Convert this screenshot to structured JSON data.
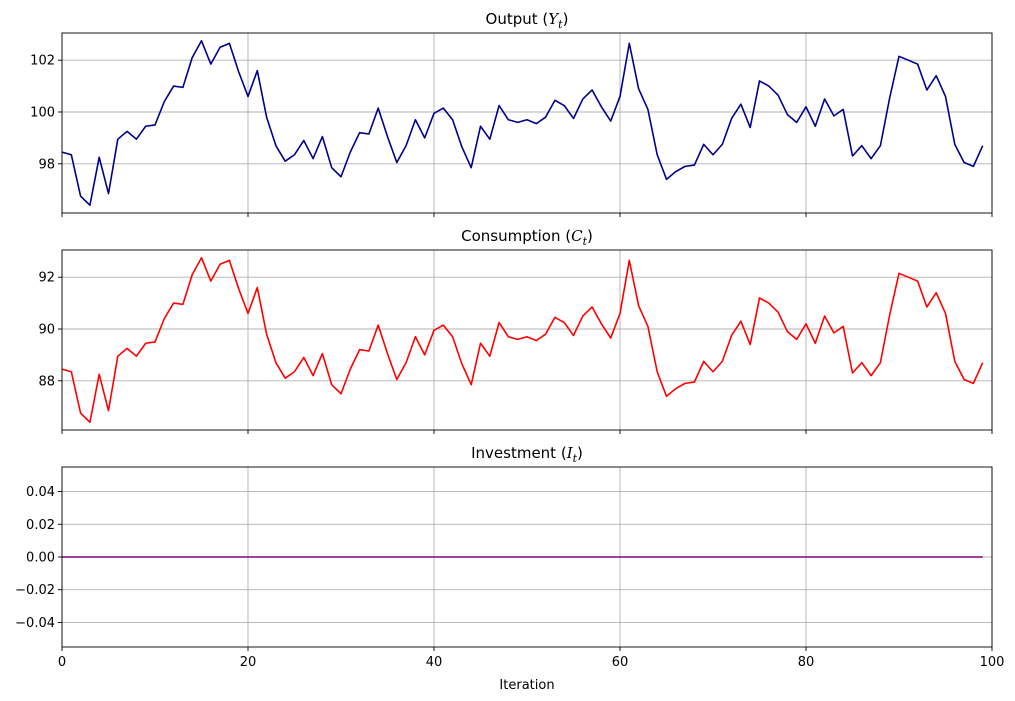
{
  "chart_data": [
    {
      "type": "line",
      "title": "Output",
      "symbol": "Y",
      "subscript": "t",
      "color": "#00008b",
      "xlim": [
        0,
        100
      ],
      "ylim": [
        96.1,
        103.05
      ],
      "yticks": [
        98,
        100,
        102
      ],
      "ytick_labels": [
        "98",
        "100",
        "102"
      ],
      "xticks": [
        0,
        20,
        40,
        60,
        80,
        100
      ],
      "xtick_labels": [],
      "xlabel": "",
      "x_start": 0,
      "values": [
        98.45,
        98.35,
        96.75,
        96.4,
        98.25,
        96.85,
        98.95,
        99.25,
        98.95,
        99.45,
        99.5,
        100.4,
        101.0,
        100.95,
        102.1,
        102.75,
        101.85,
        102.5,
        102.65,
        101.55,
        100.6,
        101.6,
        99.8,
        98.7,
        98.1,
        98.35,
        98.9,
        98.2,
        99.05,
        97.85,
        97.5,
        98.45,
        99.2,
        99.15,
        100.15,
        99.05,
        98.05,
        98.7,
        99.7,
        99.0,
        99.95,
        100.15,
        99.7,
        98.65,
        97.85,
        99.45,
        98.95,
        100.25,
        99.7,
        99.6,
        99.7,
        99.55,
        99.8,
        100.45,
        100.25,
        99.75,
        100.5,
        100.85,
        100.2,
        99.65,
        100.6,
        102.65,
        100.9,
        100.1,
        98.35,
        97.4,
        97.7,
        97.9,
        97.95,
        98.75,
        98.35,
        98.75,
        99.75,
        100.3,
        99.4,
        101.2,
        101.0,
        100.65,
        99.9,
        99.6,
        100.2,
        99.45,
        100.5,
        99.85,
        100.1,
        98.3,
        98.7,
        98.2,
        98.7,
        100.55,
        102.15,
        102.0,
        101.85,
        100.85,
        101.4,
        100.6,
        98.75,
        98.05,
        97.9,
        98.7
      ]
    },
    {
      "type": "line",
      "title": "Consumption",
      "symbol": "C",
      "subscript": "t",
      "color": "#ff0000",
      "xlim": [
        0,
        100
      ],
      "ylim": [
        86.1,
        93.05
      ],
      "yticks": [
        88,
        90,
        92
      ],
      "ytick_labels": [
        "88",
        "90",
        "92"
      ],
      "xticks": [
        0,
        20,
        40,
        60,
        80,
        100
      ],
      "xtick_labels": [],
      "xlabel": "",
      "x_start": 0,
      "values": [
        88.45,
        88.35,
        86.75,
        86.4,
        88.25,
        86.85,
        88.95,
        89.25,
        88.95,
        89.45,
        89.5,
        90.4,
        91.0,
        90.95,
        92.1,
        92.75,
        91.85,
        92.5,
        92.65,
        91.55,
        90.6,
        91.6,
        89.8,
        88.7,
        88.1,
        88.35,
        88.9,
        88.2,
        89.05,
        87.85,
        87.5,
        88.45,
        89.2,
        89.15,
        90.15,
        89.05,
        88.05,
        88.7,
        89.7,
        89.0,
        89.95,
        90.15,
        89.7,
        88.65,
        87.85,
        89.45,
        88.95,
        90.25,
        89.7,
        89.6,
        89.7,
        89.55,
        89.8,
        90.45,
        90.25,
        89.75,
        90.5,
        90.85,
        90.2,
        89.65,
        90.6,
        92.65,
        90.9,
        90.1,
        88.35,
        87.4,
        87.7,
        87.9,
        87.95,
        88.75,
        88.35,
        88.75,
        89.75,
        90.3,
        89.4,
        91.2,
        91.0,
        90.65,
        89.9,
        89.6,
        90.2,
        89.45,
        90.5,
        89.85,
        90.1,
        88.3,
        88.7,
        88.2,
        88.7,
        90.55,
        92.15,
        92.0,
        91.85,
        90.85,
        91.4,
        90.6,
        88.75,
        88.05,
        87.9,
        88.7
      ]
    },
    {
      "type": "line",
      "title": "Investment",
      "symbol": "I",
      "subscript": "t",
      "color": "#800080",
      "xlim": [
        0,
        100
      ],
      "ylim": [
        -0.055,
        0.055
      ],
      "yticks": [
        -0.04,
        -0.02,
        0.0,
        0.02,
        0.04
      ],
      "ytick_labels": [
        "−0.04",
        "−0.02",
        "0.00",
        "0.02",
        "0.04"
      ],
      "xticks": [
        0,
        20,
        40,
        60,
        80,
        100
      ],
      "xtick_labels": [
        "0",
        "20",
        "40",
        "60",
        "80",
        "100"
      ],
      "xlabel": "Iteration",
      "x_start": 0,
      "values": [
        0,
        0,
        0,
        0,
        0,
        0,
        0,
        0,
        0,
        0,
        0,
        0,
        0,
        0,
        0,
        0,
        0,
        0,
        0,
        0,
        0,
        0,
        0,
        0,
        0,
        0,
        0,
        0,
        0,
        0,
        0,
        0,
        0,
        0,
        0,
        0,
        0,
        0,
        0,
        0,
        0,
        0,
        0,
        0,
        0,
        0,
        0,
        0,
        0,
        0,
        0,
        0,
        0,
        0,
        0,
        0,
        0,
        0,
        0,
        0,
        0,
        0,
        0,
        0,
        0,
        0,
        0,
        0,
        0,
        0,
        0,
        0,
        0,
        0,
        0,
        0,
        0,
        0,
        0,
        0,
        0,
        0,
        0,
        0,
        0,
        0,
        0,
        0,
        0,
        0,
        0,
        0,
        0,
        0,
        0,
        0,
        0,
        0,
        0,
        0
      ]
    }
  ]
}
